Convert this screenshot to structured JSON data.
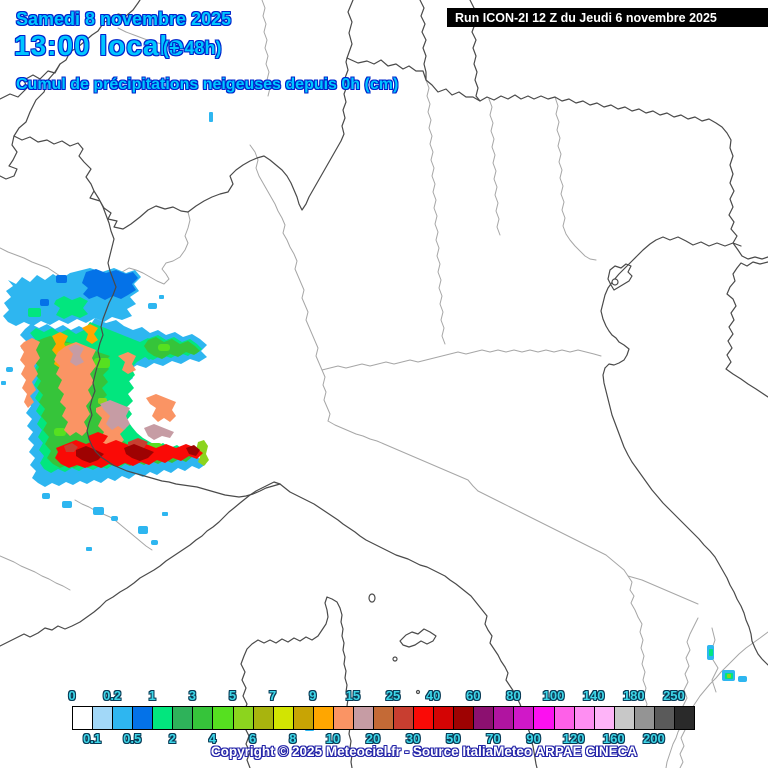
{
  "header": {
    "date_line": "Samedi 8 novembre 2025",
    "time_line": "13:00 locale",
    "time_offset": "(+ 48h)",
    "subtitle": "Cumul de précipitations neigeuses depuis 0h (cm)",
    "run_info": "Run ICON-2I 12 Z du Jeudi 6 novembre 2025",
    "text_color": "#00C6FF",
    "outline_color": "#0024CC",
    "run_box_bg": "#000000",
    "run_text_color": "#FFFFFF"
  },
  "legend": {
    "colors": [
      "#FFFFFF",
      "#A2D8F8",
      "#2EB6F0",
      "#0472E8",
      "#02E67E",
      "#2EB25A",
      "#36C43A",
      "#56E020",
      "#8CD41E",
      "#A8B40E",
      "#D2E402",
      "#C8A404",
      "#FFA600",
      "#FA9464",
      "#C69CA4",
      "#C46A36",
      "#C83E30",
      "#FA0A06",
      "#D40404",
      "#9E0202",
      "#8C1070",
      "#B014A0",
      "#D018C8",
      "#FC10F0",
      "#FE60E8",
      "#FE8EF2",
      "#FEB4F8",
      "#C8C8C8",
      "#949494",
      "#5A5A5A",
      "#2A2A2A"
    ],
    "top_labels": [
      "0",
      "0.2",
      "1",
      "3",
      "5",
      "7",
      "9",
      "15",
      "25",
      "40",
      "60",
      "80",
      "100",
      "140",
      "180",
      "250"
    ],
    "bottom_labels": [
      "0.1",
      "0.5",
      "2",
      "4",
      "6",
      "8",
      "10",
      "20",
      "30",
      "50",
      "70",
      "90",
      "120",
      "160",
      "200"
    ],
    "label_color": "#3ED6E8",
    "label_outline": "#083A55"
  },
  "footer": {
    "copyright": "Copyright © 2025 Meteociel.fr - Source ItaliaMeteo ARPAE CINECA",
    "text_color": "#FFFFFF",
    "outline_color": "#2424A8"
  },
  "map": {
    "national_border_color": "#4A4A4A",
    "region_border_color": "#A6A6A6",
    "background_color": "#FFFFFF"
  }
}
